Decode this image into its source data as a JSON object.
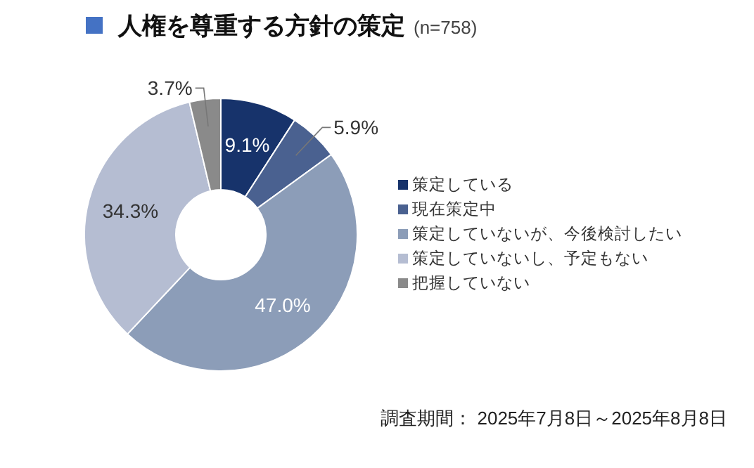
{
  "chart_data": {
    "type": "donut",
    "title": "人権を尊重する方針の策定",
    "subtitle": "(n=758)",
    "categories": [
      "策定している",
      "現在策定中",
      "策定していないが、今後検討したい",
      "策定していないし、予定もない",
      "把握していない"
    ],
    "values": [
      9.1,
      5.9,
      47.0,
      34.3,
      3.7
    ],
    "colors": [
      "#17336b",
      "#4a6190",
      "#8c9db8",
      "#b5bdd2",
      "#8a8a8a"
    ],
    "value_labels": [
      "9.1%",
      "5.9%",
      "47.0%",
      "34.3%",
      "3.7%"
    ],
    "legend": "right",
    "annotations": [
      "調査期間： 2025年7月8日～2025年8月8日"
    ]
  }
}
